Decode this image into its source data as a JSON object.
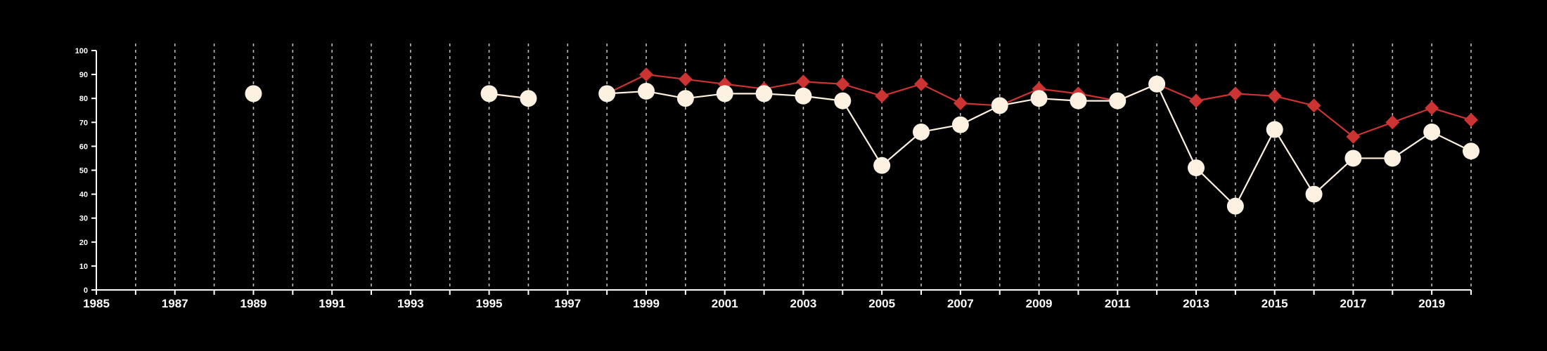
{
  "colors": {
    "background": "#000000",
    "axis": "#ffffff",
    "grid": "#bbbbbb",
    "series_a_line": "#fff2e0",
    "series_a_marker": "#fdf1e2",
    "series_b": "#cc3333"
  },
  "chart_data": {
    "type": "line",
    "title": "",
    "xlabel": "",
    "ylabel": "",
    "xlim": [
      1985,
      2020
    ],
    "ylim": [
      0,
      100
    ],
    "x_ticks": [
      1985,
      1987,
      1989,
      1991,
      1993,
      1995,
      1997,
      1999,
      2001,
      2003,
      2005,
      2007,
      2009,
      2011,
      2013,
      2015,
      2017,
      2019
    ],
    "y_ticks": [
      0,
      10,
      20,
      30,
      40,
      50,
      60,
      70,
      80,
      90,
      100
    ],
    "grid": {
      "vertical": true,
      "horizontal": false,
      "style": "dashed",
      "every_year": true
    },
    "legend": "none",
    "series": [
      {
        "marker": "circle",
        "points": [
          {
            "x": 1989,
            "y": 82
          },
          {
            "x": 1995,
            "y": 82
          },
          {
            "x": 1996,
            "y": 80
          },
          {
            "x": 1998,
            "y": 82
          },
          {
            "x": 1999,
            "y": 83
          },
          {
            "x": 2000,
            "y": 80
          },
          {
            "x": 2001,
            "y": 82
          },
          {
            "x": 2002,
            "y": 82
          },
          {
            "x": 2003,
            "y": 81
          },
          {
            "x": 2004,
            "y": 79
          },
          {
            "x": 2005,
            "y": 52
          },
          {
            "x": 2006,
            "y": 66
          },
          {
            "x": 2007,
            "y": 69
          },
          {
            "x": 2008,
            "y": 77
          },
          {
            "x": 2009,
            "y": 80
          },
          {
            "x": 2010,
            "y": 79
          },
          {
            "x": 2011,
            "y": 79
          },
          {
            "x": 2012,
            "y": 86
          },
          {
            "x": 2013,
            "y": 51
          },
          {
            "x": 2014,
            "y": 35
          },
          {
            "x": 2015,
            "y": 67
          },
          {
            "x": 2016,
            "y": 40
          },
          {
            "x": 2017,
            "y": 55
          },
          {
            "x": 2018,
            "y": 55
          },
          {
            "x": 2019,
            "y": 66
          },
          {
            "x": 2020,
            "y": 58
          }
        ]
      },
      {
        "marker": "diamond",
        "points": [
          {
            "x": 1989,
            "y": 82
          },
          {
            "x": 1995,
            "y": 82
          },
          {
            "x": 1996,
            "y": 80
          },
          {
            "x": 1998,
            "y": 82
          },
          {
            "x": 1999,
            "y": 90
          },
          {
            "x": 2000,
            "y": 88
          },
          {
            "x": 2001,
            "y": 86
          },
          {
            "x": 2002,
            "y": 84
          },
          {
            "x": 2003,
            "y": 87
          },
          {
            "x": 2004,
            "y": 86
          },
          {
            "x": 2005,
            "y": 81
          },
          {
            "x": 2006,
            "y": 86
          },
          {
            "x": 2007,
            "y": 78
          },
          {
            "x": 2008,
            "y": 77
          },
          {
            "x": 2009,
            "y": 84
          },
          {
            "x": 2010,
            "y": 82
          },
          {
            "x": 2011,
            "y": 79
          },
          {
            "x": 2012,
            "y": 86
          },
          {
            "x": 2013,
            "y": 79
          },
          {
            "x": 2014,
            "y": 82
          },
          {
            "x": 2015,
            "y": 81
          },
          {
            "x": 2016,
            "y": 77
          },
          {
            "x": 2017,
            "y": 64
          },
          {
            "x": 2018,
            "y": 70
          },
          {
            "x": 2019,
            "y": 76
          },
          {
            "x": 2020,
            "y": 71
          }
        ]
      }
    ]
  }
}
